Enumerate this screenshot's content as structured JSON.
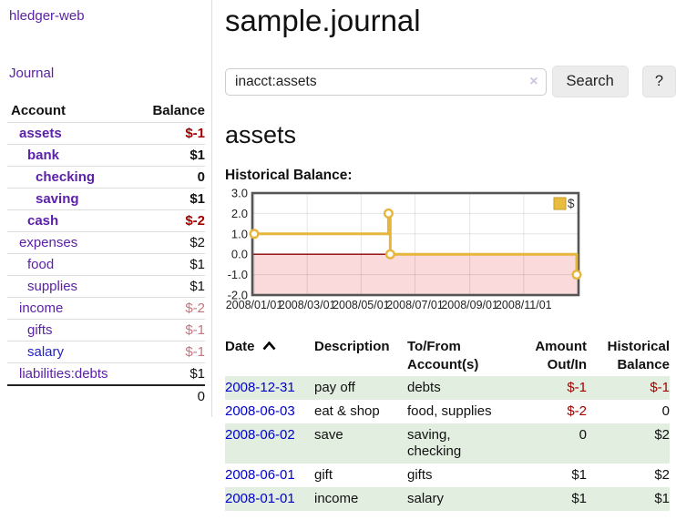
{
  "app": {
    "brand": "hledger-web",
    "nav_journal": "Journal"
  },
  "colors": {
    "accent_purple": "#5b21a8",
    "link_blue": "#2222cc",
    "date_link_blue": "#0000cc",
    "negative": "#a40000",
    "negative_muted": "#c2767c",
    "row_green": "#e2eee0",
    "chart_line_gold": "#e6b53c",
    "chart_negative_region": "#fadadb",
    "zero_line": "#8b0000"
  },
  "sidebar": {
    "header": {
      "account": "Account",
      "balance": "Balance"
    },
    "accounts": [
      {
        "label": "assets",
        "balance": "$-1",
        "depth": 1,
        "bold": true,
        "balance_tone": "neg-strong",
        "link_tone": "visited"
      },
      {
        "label": "bank",
        "balance": "$1",
        "depth": 2,
        "bold": true,
        "balance_tone": null,
        "link_tone": "visited"
      },
      {
        "label": "checking",
        "balance": "0",
        "depth": 3,
        "bold": true,
        "balance_tone": null,
        "link_tone": "visited"
      },
      {
        "label": "saving",
        "balance": "$1",
        "depth": 3,
        "bold": true,
        "balance_tone": null,
        "link_tone": "visited"
      },
      {
        "label": "cash",
        "balance": "$-2",
        "depth": 2,
        "bold": true,
        "balance_tone": "neg-strong",
        "link_tone": "visited"
      },
      {
        "label": "expenses",
        "balance": "$2",
        "depth": 1,
        "bold": false,
        "balance_tone": null,
        "link_tone": "visited"
      },
      {
        "label": "food",
        "balance": "$1",
        "depth": 2,
        "bold": false,
        "balance_tone": null,
        "link_tone": "visited"
      },
      {
        "label": "supplies",
        "balance": "$1",
        "depth": 2,
        "bold": false,
        "balance_tone": null,
        "link_tone": "visited"
      },
      {
        "label": "income",
        "balance": "$-2",
        "depth": 1,
        "bold": false,
        "balance_tone": "neg-soft",
        "link_tone": "visited"
      },
      {
        "label": "gifts",
        "balance": "$-1",
        "depth": 2,
        "bold": false,
        "balance_tone": "neg-soft",
        "link_tone": "visited"
      },
      {
        "label": "salary",
        "balance": "$-1",
        "depth": 2,
        "bold": false,
        "balance_tone": "neg-soft",
        "link_tone": "unvisited"
      },
      {
        "label": "liabilities:debts",
        "balance": "$1",
        "depth": 1,
        "bold": false,
        "balance_tone": null,
        "link_tone": "visited"
      }
    ],
    "total": "0"
  },
  "main": {
    "title": "sample.journal",
    "search": {
      "value": "inacct:assets",
      "clear_icon": "×",
      "button_label": "Search",
      "help_label": "?"
    },
    "account_heading": "assets"
  },
  "chart_data": {
    "type": "line",
    "step": true,
    "title": "Historical Balance:",
    "legend_position": "top-right",
    "series": [
      {
        "name": "$",
        "points": [
          {
            "date": "2008-01-01",
            "day": 0,
            "value": 1
          },
          {
            "date": "2008-06-01",
            "day": 152,
            "value": 2
          },
          {
            "date": "2008-06-03",
            "day": 154,
            "value": 0
          },
          {
            "date": "2008-12-31",
            "day": 365,
            "value": -1
          }
        ]
      }
    ],
    "xticks": [
      {
        "day": 0,
        "label": "2008/01/01"
      },
      {
        "day": 60,
        "label": "2008/03/01"
      },
      {
        "day": 121,
        "label": "2008/05/01"
      },
      {
        "day": 182,
        "label": "2008/07/01"
      },
      {
        "day": 244,
        "label": "2008/09/01"
      },
      {
        "day": 305,
        "label": "2008/11/01"
      }
    ],
    "yticks": [
      3.0,
      2.0,
      1.0,
      0.0,
      -1.0,
      -2.0
    ],
    "ylim": [
      -2,
      3
    ],
    "xlim_days": [
      0,
      365
    ],
    "grid": true
  },
  "register": {
    "columns": [
      {
        "key": "date",
        "label": "Date",
        "label2": "",
        "sort": "asc",
        "align": "left"
      },
      {
        "key": "description",
        "label": "Description",
        "label2": "",
        "sort": null,
        "align": "left"
      },
      {
        "key": "accounts",
        "label": "To/From",
        "label2": "Account(s)",
        "sort": null,
        "align": "left"
      },
      {
        "key": "amount",
        "label": "Amount",
        "label2": "Out/In",
        "sort": null,
        "align": "right"
      },
      {
        "key": "balance",
        "label": "Historical",
        "label2": "Balance",
        "sort": null,
        "align": "right"
      }
    ],
    "rows": [
      {
        "date": "2008-12-31",
        "description": "pay off",
        "accounts": "debts",
        "amount": "$-1",
        "balance": "$-1",
        "amount_neg": true,
        "balance_neg": true,
        "green": true
      },
      {
        "date": "2008-06-03",
        "description": "eat & shop",
        "accounts": "food, supplies",
        "amount": "$-2",
        "balance": "0",
        "amount_neg": true,
        "balance_neg": false,
        "green": false
      },
      {
        "date": "2008-06-02",
        "description": "save",
        "accounts": "saving, checking",
        "amount": "0",
        "balance": "$2",
        "amount_neg": false,
        "balance_neg": false,
        "green": true
      },
      {
        "date": "2008-06-01",
        "description": "gift",
        "accounts": "gifts",
        "amount": "$1",
        "balance": "$2",
        "amount_neg": false,
        "balance_neg": false,
        "green": false
      },
      {
        "date": "2008-01-01",
        "description": "income",
        "accounts": "salary",
        "amount": "$1",
        "balance": "$1",
        "amount_neg": false,
        "balance_neg": false,
        "green": true
      }
    ]
  }
}
